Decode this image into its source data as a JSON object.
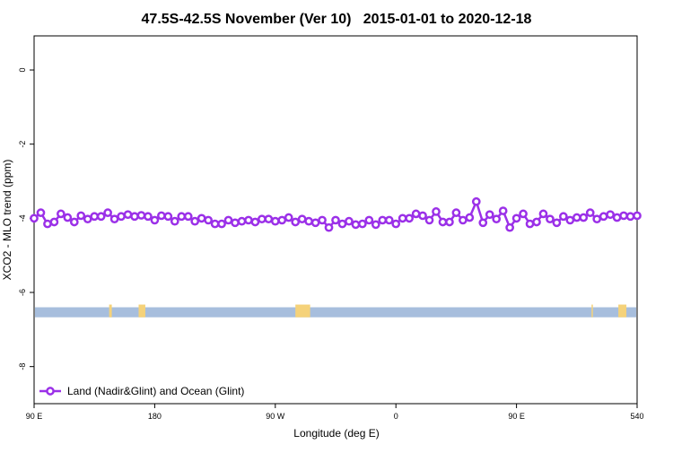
{
  "chart_data": {
    "type": "line",
    "title": "47.5S-42.5S November (Ver 10)   2015-01-01 to 2020-12-18",
    "x_label": "Longitude (deg E)",
    "y_label": "XCO2 - MLO trend (ppm)",
    "x": [
      90,
      95,
      100,
      105,
      110,
      115,
      120,
      125,
      130,
      135,
      140,
      145,
      150,
      155,
      160,
      165,
      170,
      175,
      180,
      185,
      190,
      195,
      200,
      205,
      210,
      215,
      220,
      225,
      230,
      235,
      240,
      245,
      250,
      255,
      260,
      265,
      270,
      275,
      280,
      285,
      290,
      295,
      300,
      305,
      310,
      315,
      320,
      325,
      330,
      335,
      340,
      345,
      350,
      355,
      360,
      365,
      370,
      375,
      380,
      385,
      390,
      395,
      400,
      405,
      410,
      415,
      420,
      425,
      430,
      435,
      440,
      445,
      450,
      455,
      460,
      465,
      470,
      475,
      480,
      485,
      490,
      495,
      500,
      505,
      510,
      515,
      520,
      525,
      530,
      535,
      540
    ],
    "series": [
      {
        "name": "Land (Nadir&Glint) and Ocean (Glint)",
        "color": "#9b30e8",
        "values": [
          -4.0,
          -3.85,
          -4.15,
          -4.1,
          -3.88,
          -3.98,
          -4.1,
          -3.93,
          -4.02,
          -3.95,
          -3.95,
          -3.85,
          -4.02,
          -3.95,
          -3.9,
          -3.95,
          -3.92,
          -3.95,
          -4.05,
          -3.93,
          -3.95,
          -4.08,
          -3.95,
          -3.95,
          -4.08,
          -4.0,
          -4.05,
          -4.15,
          -4.15,
          -4.05,
          -4.12,
          -4.08,
          -4.05,
          -4.1,
          -4.02,
          -4.02,
          -4.08,
          -4.05,
          -3.98,
          -4.1,
          -4.02,
          -4.08,
          -4.12,
          -4.05,
          -4.25,
          -4.05,
          -4.15,
          -4.08,
          -4.17,
          -4.15,
          -4.05,
          -4.17,
          -4.05,
          -4.05,
          -4.15,
          -4.0,
          -4.0,
          -3.88,
          -3.93,
          -4.05,
          -3.82,
          -4.1,
          -4.1,
          -3.85,
          -4.05,
          -3.98,
          -3.55,
          -4.12,
          -3.9,
          -4.02,
          -3.8,
          -4.25,
          -4.0,
          -3.88,
          -4.15,
          -4.1,
          -3.88,
          -4.02,
          -4.12,
          -3.95,
          -4.05,
          -3.98,
          -3.98,
          -3.85,
          -4.02,
          -3.95,
          -3.9,
          -3.98,
          -3.93,
          -3.95,
          -3.93
        ]
      }
    ],
    "xlim": [
      90,
      540
    ],
    "xticks": [
      {
        "value": 90,
        "label": "90 E"
      },
      180,
      {
        "value": 270,
        "label": "90 W"
      },
      {
        "value": 360,
        "label": "0"
      },
      {
        "value": 450,
        "label": "90 E"
      },
      540
    ],
    "ylim": [
      -9,
      0.92
    ],
    "yticks": [
      0,
      -2,
      -4,
      -6,
      -8
    ],
    "legend": "bottom-left",
    "surface_band": {
      "ylim": [
        -6.67,
        -6.4
      ],
      "color": "#a7bedd",
      "land_color": "#f5d27a",
      "land": [
        [
          146,
          148
        ],
        [
          168,
          173
        ],
        [
          285,
          296
        ],
        [
          506,
          507
        ],
        [
          526,
          532
        ]
      ]
    }
  }
}
